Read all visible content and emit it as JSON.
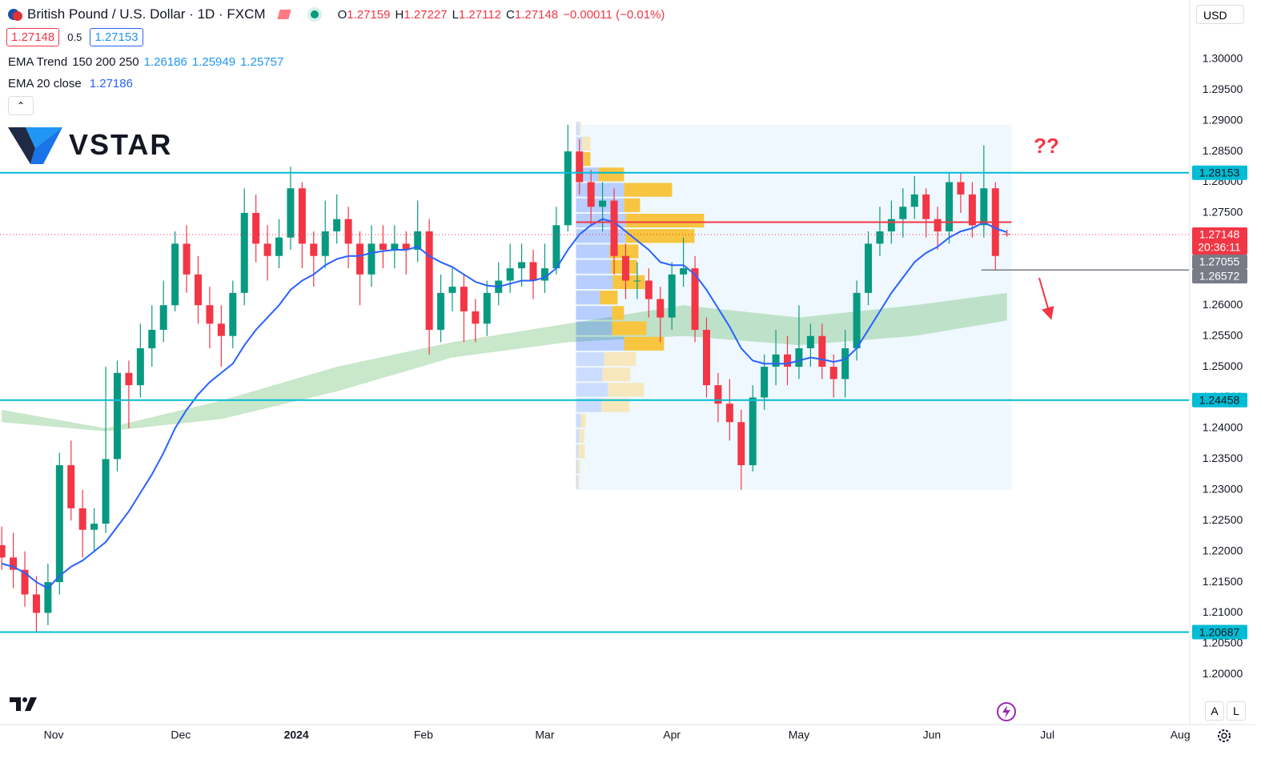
{
  "ui": {
    "symbol": "British Pound / U.S. Dollar · 1D · FXCM",
    "ohlc_labels": [
      "O",
      "H",
      "L",
      "C"
    ],
    "ohlc": [
      "1.27159",
      "1.27227",
      "1.27112",
      "1.27148"
    ],
    "change": "−0.00011 (−0.01%)",
    "bid": "1.27148",
    "spread": "0.5",
    "ask": "1.27153",
    "indicators": [
      {
        "name": "EMA Trend",
        "params": "150 200 250",
        "values": [
          "1.26186",
          "1.25949",
          "1.25757"
        ]
      },
      {
        "name": "EMA 20 close",
        "values": [
          "1.27186"
        ]
      }
    ],
    "currency": "USD",
    "logo": "VSTAR",
    "scale_buttons": [
      "A",
      "L"
    ]
  },
  "chart_data": {
    "type": "candlestick",
    "xlim": [
      -9.3,
      196.5
    ],
    "ylim": [
      1.1925,
      1.307
    ],
    "grid": false,
    "up_color": "#089981",
    "down_color": "#f23645",
    "xticks": [
      {
        "value": 0,
        "label": "Nov"
      },
      {
        "value": 22,
        "label": "Dec"
      },
      {
        "value": 42,
        "label": "2024",
        "bold": true
      },
      {
        "value": 64,
        "label": "Feb"
      },
      {
        "value": 85,
        "label": "Mar"
      },
      {
        "value": 107,
        "label": "Apr"
      },
      {
        "value": 129,
        "label": "May"
      },
      {
        "value": 152,
        "label": "Jun"
      },
      {
        "value": 172,
        "label": "Jul"
      },
      {
        "value": 195,
        "label": "Aug"
      }
    ],
    "yticks": [
      {
        "value": 1.2,
        "label": "1.20000"
      },
      {
        "value": 1.205,
        "label": "1.20500"
      },
      {
        "value": 1.21,
        "label": "1.21000"
      },
      {
        "value": 1.215,
        "label": "1.21500"
      },
      {
        "value": 1.22,
        "label": "1.22000"
      },
      {
        "value": 1.225,
        "label": "1.22500"
      },
      {
        "value": 1.23,
        "label": "1.23000"
      },
      {
        "value": 1.235,
        "label": "1.23500"
      },
      {
        "value": 1.24,
        "label": "1.24000"
      },
      {
        "value": 1.245,
        "label": "1.24500"
      },
      {
        "value": 1.25,
        "label": "1.25000"
      },
      {
        "value": 1.255,
        "label": "1.25500"
      },
      {
        "value": 1.26,
        "label": "1.26000"
      },
      {
        "value": 1.265,
        "label": "1.26500"
      },
      {
        "value": 1.27,
        "label": "1.27000"
      },
      {
        "value": 1.275,
        "label": "1.27500"
      },
      {
        "value": 1.28,
        "label": "1.28000"
      },
      {
        "value": 1.285,
        "label": "1.28500"
      },
      {
        "value": 1.29,
        "label": "1.29000"
      },
      {
        "value": 1.295,
        "label": "1.29500"
      },
      {
        "value": 1.3,
        "label": "1.30000"
      }
    ],
    "x": [
      -9,
      -7,
      -5,
      -3,
      -1,
      1,
      3,
      5,
      7,
      9,
      11,
      13,
      15,
      17,
      19,
      21,
      23,
      25,
      27,
      29,
      31,
      33,
      35,
      37,
      39,
      41,
      43,
      45,
      47,
      49,
      51,
      53,
      55,
      57,
      59,
      61,
      63,
      65,
      67,
      69,
      71,
      73,
      75,
      77,
      79,
      81,
      83,
      85,
      87,
      89,
      91,
      93,
      95,
      97,
      99,
      101,
      103,
      105,
      107,
      109,
      111,
      113,
      115,
      117,
      119,
      121,
      123,
      125,
      127,
      129,
      131,
      133,
      135,
      137,
      139,
      141,
      143,
      145,
      147,
      149,
      151,
      153,
      155,
      157,
      159,
      161,
      163,
      165
    ],
    "candles": [
      [
        1.221,
        1.224,
        1.217,
        1.219
      ],
      [
        1.219,
        1.223,
        1.214,
        1.217
      ],
      [
        1.217,
        1.22,
        1.211,
        1.213
      ],
      [
        1.213,
        1.216,
        1.2069,
        1.21
      ],
      [
        1.21,
        1.218,
        1.208,
        1.215
      ],
      [
        1.215,
        1.236,
        1.213,
        1.234
      ],
      [
        1.234,
        1.238,
        1.225,
        1.227
      ],
      [
        1.227,
        1.23,
        1.219,
        1.2235
      ],
      [
        1.2235,
        1.227,
        1.22,
        1.2245
      ],
      [
        1.2245,
        1.25,
        1.223,
        1.235
      ],
      [
        1.235,
        1.251,
        1.233,
        1.249
      ],
      [
        1.249,
        1.251,
        1.24,
        1.247
      ],
      [
        1.247,
        1.257,
        1.245,
        1.253
      ],
      [
        1.253,
        1.26,
        1.25,
        1.256
      ],
      [
        1.256,
        1.264,
        1.254,
        1.26
      ],
      [
        1.26,
        1.272,
        1.259,
        1.27
      ],
      [
        1.27,
        1.273,
        1.262,
        1.265
      ],
      [
        1.265,
        1.268,
        1.257,
        1.26
      ],
      [
        1.26,
        1.263,
        1.253,
        1.257
      ],
      [
        1.257,
        1.26,
        1.25,
        1.255
      ],
      [
        1.255,
        1.264,
        1.253,
        1.262
      ],
      [
        1.262,
        1.279,
        1.26,
        1.275
      ],
      [
        1.275,
        1.278,
        1.267,
        1.27
      ],
      [
        1.27,
        1.273,
        1.264,
        1.268
      ],
      [
        1.268,
        1.274,
        1.266,
        1.271
      ],
      [
        1.271,
        1.2825,
        1.269,
        1.279
      ],
      [
        1.279,
        1.28,
        1.266,
        1.27
      ],
      [
        1.27,
        1.272,
        1.263,
        1.268
      ],
      [
        1.268,
        1.277,
        1.266,
        1.272
      ],
      [
        1.272,
        1.278,
        1.27,
        1.274
      ],
      [
        1.274,
        1.276,
        1.266,
        1.27
      ],
      [
        1.27,
        1.272,
        1.26,
        1.265
      ],
      [
        1.265,
        1.273,
        1.263,
        1.27
      ],
      [
        1.27,
        1.273,
        1.266,
        1.269
      ],
      [
        1.269,
        1.273,
        1.266,
        1.27
      ],
      [
        1.27,
        1.272,
        1.265,
        1.269
      ],
      [
        1.269,
        1.277,
        1.267,
        1.272
      ],
      [
        1.272,
        1.274,
        1.252,
        1.256
      ],
      [
        1.256,
        1.265,
        1.254,
        1.262
      ],
      [
        1.262,
        1.266,
        1.259,
        1.263
      ],
      [
        1.263,
        1.265,
        1.254,
        1.259
      ],
      [
        1.259,
        1.261,
        1.254,
        1.257
      ],
      [
        1.257,
        1.264,
        1.255,
        1.262
      ],
      [
        1.262,
        1.267,
        1.26,
        1.264
      ],
      [
        1.264,
        1.27,
        1.262,
        1.266
      ],
      [
        1.266,
        1.27,
        1.263,
        1.267
      ],
      [
        1.267,
        1.269,
        1.261,
        1.264
      ],
      [
        1.264,
        1.27,
        1.262,
        1.266
      ],
      [
        1.266,
        1.276,
        1.265,
        1.273
      ],
      [
        1.273,
        1.2893,
        1.272,
        1.285
      ],
      [
        1.285,
        1.287,
        1.278,
        1.28
      ],
      [
        1.28,
        1.282,
        1.273,
        1.276
      ],
      [
        1.276,
        1.28,
        1.272,
        1.277
      ],
      [
        1.277,
        1.279,
        1.265,
        1.268
      ],
      [
        1.268,
        1.27,
        1.261,
        1.264
      ],
      [
        1.264,
        1.267,
        1.261,
        1.264
      ],
      [
        1.264,
        1.266,
        1.258,
        1.261
      ],
      [
        1.261,
        1.263,
        1.254,
        1.258
      ],
      [
        1.258,
        1.267,
        1.256,
        1.265
      ],
      [
        1.265,
        1.271,
        1.263,
        1.266
      ],
      [
        1.266,
        1.268,
        1.254,
        1.256
      ],
      [
        1.256,
        1.258,
        1.245,
        1.247
      ],
      [
        1.247,
        1.249,
        1.241,
        1.244
      ],
      [
        1.244,
        1.248,
        1.238,
        1.241
      ],
      [
        1.241,
        1.243,
        1.23,
        1.234
      ],
      [
        1.234,
        1.247,
        1.233,
        1.245
      ],
      [
        1.245,
        1.252,
        1.243,
        1.25
      ],
      [
        1.25,
        1.256,
        1.247,
        1.252
      ],
      [
        1.252,
        1.255,
        1.247,
        1.25
      ],
      [
        1.25,
        1.26,
        1.248,
        1.253
      ],
      [
        1.253,
        1.257,
        1.25,
        1.255
      ],
      [
        1.255,
        1.257,
        1.248,
        1.25
      ],
      [
        1.25,
        1.252,
        1.245,
        1.248
      ],
      [
        1.248,
        1.256,
        1.245,
        1.253
      ],
      [
        1.253,
        1.264,
        1.251,
        1.262
      ],
      [
        1.262,
        1.272,
        1.26,
        1.27
      ],
      [
        1.27,
        1.276,
        1.268,
        1.272
      ],
      [
        1.272,
        1.277,
        1.27,
        1.274
      ],
      [
        1.274,
        1.279,
        1.271,
        1.276
      ],
      [
        1.276,
        1.281,
        1.274,
        1.278
      ],
      [
        1.278,
        1.279,
        1.271,
        1.274
      ],
      [
        1.274,
        1.276,
        1.269,
        1.272
      ],
      [
        1.272,
        1.2815,
        1.27,
        1.28
      ],
      [
        1.28,
        1.2815,
        1.275,
        1.278
      ],
      [
        1.278,
        1.28,
        1.271,
        1.273
      ],
      [
        1.273,
        1.286,
        1.271,
        1.279
      ],
      [
        1.279,
        1.28,
        1.2657,
        1.268
      ],
      [
        1.27159,
        1.27227,
        1.27112,
        1.27148
      ]
    ],
    "ema20": {
      "color": "#2962ff",
      "values": [
        1.218,
        1.2175,
        1.2165,
        1.215,
        1.214,
        1.216,
        1.2175,
        1.2185,
        1.22,
        1.2215,
        1.224,
        1.2265,
        1.2295,
        1.2325,
        1.236,
        1.24,
        1.243,
        1.2455,
        1.2475,
        1.249,
        1.2505,
        1.2535,
        1.256,
        1.258,
        1.26,
        1.2625,
        1.264,
        1.265,
        1.2665,
        1.2675,
        1.268,
        1.268,
        1.2685,
        1.2688,
        1.269,
        1.269,
        1.2695,
        1.268,
        1.267,
        1.2662,
        1.265,
        1.2638,
        1.2632,
        1.263,
        1.2635,
        1.264,
        1.264,
        1.2645,
        1.266,
        1.269,
        1.2715,
        1.273,
        1.274,
        1.2735,
        1.272,
        1.2705,
        1.269,
        1.267,
        1.2665,
        1.2665,
        1.265,
        1.2625,
        1.2595,
        1.2565,
        1.253,
        1.251,
        1.2505,
        1.2505,
        1.2505,
        1.251,
        1.2515,
        1.2512,
        1.2508,
        1.2512,
        1.253,
        1.256,
        1.259,
        1.262,
        1.2645,
        1.267,
        1.2685,
        1.2695,
        1.271,
        1.272,
        1.2725,
        1.2735,
        1.2725,
        1.27186
      ]
    },
    "ema_cloud": {
      "color": "rgba(76,175,80,0.3)",
      "x": [
        -9,
        9,
        29,
        49,
        69,
        89,
        109,
        129,
        149,
        165
      ],
      "upper": [
        1.243,
        1.24,
        1.2445,
        1.25,
        1.254,
        1.257,
        1.26,
        1.258,
        1.26,
        1.262
      ],
      "lower": [
        1.241,
        1.2395,
        1.2415,
        1.246,
        1.2515,
        1.254,
        1.255,
        1.2535,
        1.255,
        1.2575
      ]
    },
    "range_box": {
      "x": [
        90.4,
        165.8
      ],
      "y": [
        1.23,
        1.2893
      ],
      "color": "rgba(33,150,243,0.07)"
    },
    "volume_profile": {
      "row_height": 0.0025,
      "value_area": [
        1.2525,
        1.285
      ],
      "bottoms": [
        1.2875,
        1.285,
        1.2825,
        1.28,
        1.2775,
        1.275,
        1.2725,
        1.27,
        1.2675,
        1.265,
        1.2625,
        1.26,
        1.2575,
        1.255,
        1.2525,
        1.25,
        1.2475,
        1.245,
        1.2425,
        1.24,
        1.2375,
        1.235,
        1.2325,
        1.23
      ],
      "up": [
        4,
        8,
        10,
        28,
        60,
        60,
        62,
        62,
        42,
        44,
        46,
        30,
        45,
        45,
        60,
        35,
        33,
        40,
        32,
        6,
        4,
        3,
        2,
        2
      ],
      "down": [
        2,
        10,
        8,
        32,
        60,
        20,
        98,
        86,
        36,
        32,
        40,
        22,
        15,
        43,
        50,
        40,
        35,
        45,
        35,
        6,
        6,
        8,
        3,
        2
      ],
      "colors": {
        "va_up": "rgba(41,98,255,0.28)",
        "va_down": "#f7c53f",
        "up": "rgba(41,98,255,0.18)",
        "down": "#f6e7bd"
      }
    },
    "poc": {
      "value": 1.2735,
      "color": "#f23645"
    },
    "levels": [
      {
        "value": 1.28153,
        "color": "#00bcd4"
      },
      {
        "value": 1.24458,
        "color": "#00bcd4"
      },
      {
        "value": 1.20687,
        "color": "#00bcd4"
      }
    ],
    "current_price": {
      "value": 1.27148,
      "countdown": "20:36:11",
      "color": "#f23645"
    },
    "ema_marker": {
      "value": 1.27055,
      "color": "#787b86"
    },
    "support_marker": {
      "value": 1.26572,
      "x_start": 160.6,
      "color": "#787b86"
    },
    "annotation": "??"
  }
}
